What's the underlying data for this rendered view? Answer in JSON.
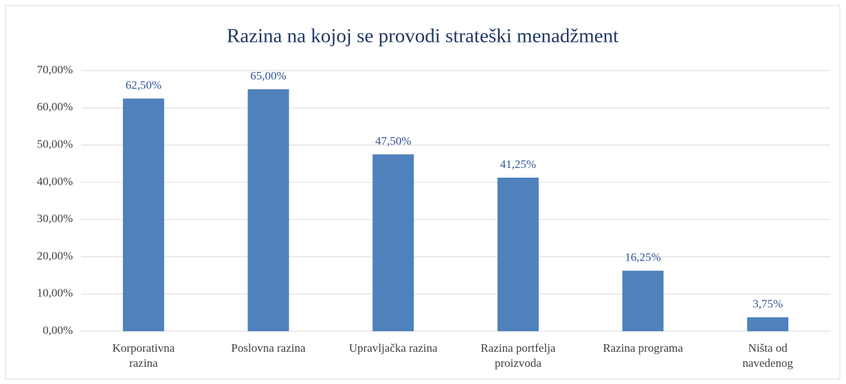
{
  "chart_data": {
    "type": "bar",
    "title": "Razina na kojoj se provodi strateški menadžment",
    "categories": [
      "Korporativna\nrazina",
      "Poslovna razina",
      "Upravljačka razina",
      "Razina portfelja\nproizvoda",
      "Razina programa",
      "Ništa od\nnavedenog"
    ],
    "values": [
      62.5,
      65,
      47.5,
      41.25,
      16.25,
      3.75
    ],
    "value_labels": [
      "62,50%",
      "65,00%",
      "47,50%",
      "41,25%",
      "16,25%",
      "3,75%"
    ],
    "color": "#4f81bd",
    "ylim": [
      0,
      70
    ],
    "yticks": [
      {
        "value": 0,
        "label": "0,00%"
      },
      {
        "value": 10,
        "label": "10,00%"
      },
      {
        "value": 20,
        "label": "20,00%"
      },
      {
        "value": 30,
        "label": "30,00%"
      },
      {
        "value": 40,
        "label": "40,00%"
      },
      {
        "value": 50,
        "label": "50,00%"
      },
      {
        "value": 60,
        "label": "60,00%"
      },
      {
        "value": 70,
        "label": "70,00%"
      }
    ],
    "grid": true
  }
}
